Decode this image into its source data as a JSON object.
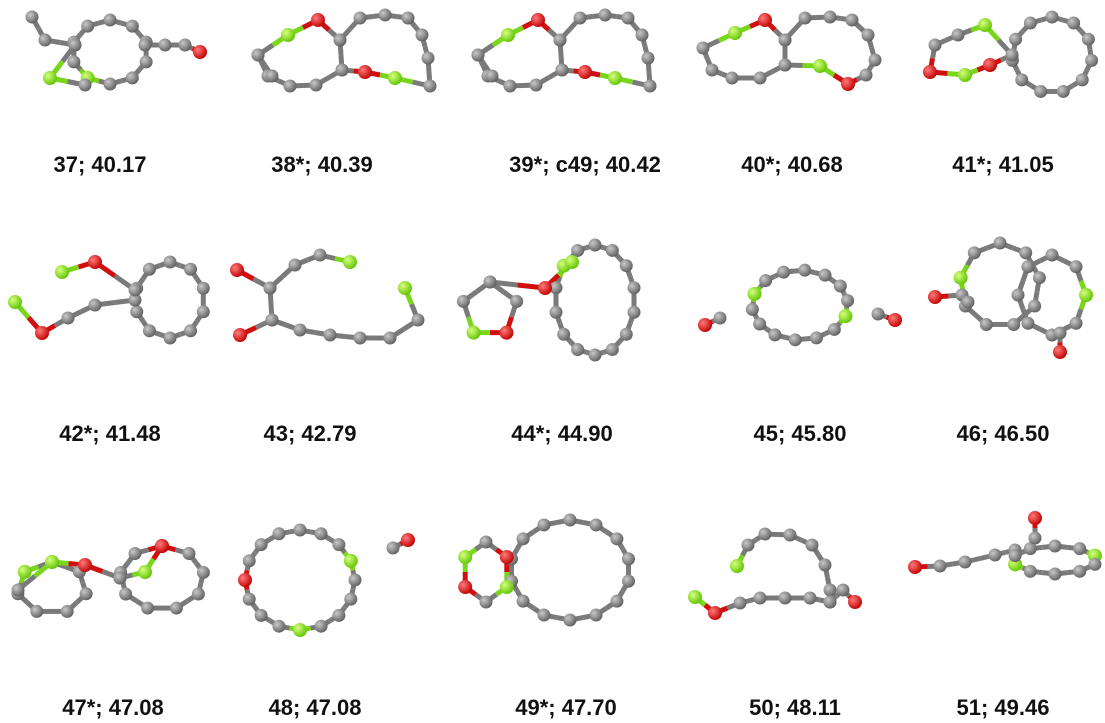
{
  "labels": [
    "37; 40.17",
    "38*; 40.39",
    "39*; c49; 40.42",
    "40*; 40.68",
    "41*; 41.05",
    "42*; 41.48",
    "43; 42.79",
    "44*; 44.90",
    "45; 45.80",
    "46; 46.50",
    "47*; 47.08",
    "48; 47.08",
    "49*; 47.70",
    "50; 48.11",
    "51; 49.46"
  ]
}
